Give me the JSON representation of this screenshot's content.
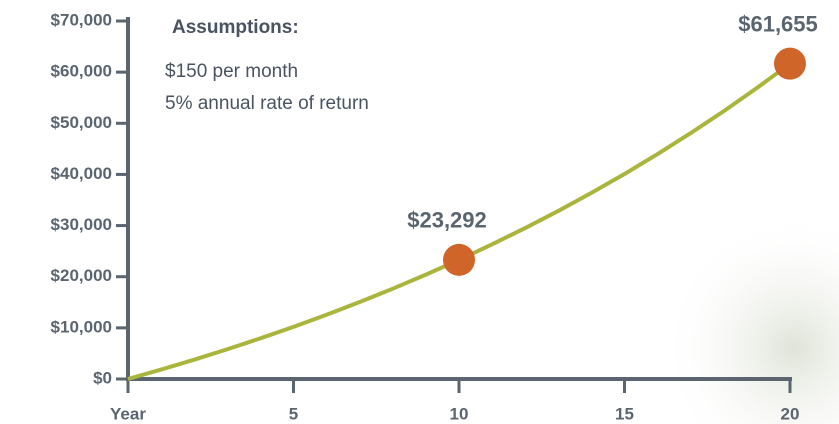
{
  "chart_data": {
    "type": "line",
    "annotations": [
      "Assumptions:",
      "$150 per month",
      "5% annual rate of return"
    ],
    "x": [
      0,
      1,
      2,
      3,
      4,
      5,
      6,
      7,
      8,
      9,
      10,
      11,
      12,
      13,
      14,
      15,
      16,
      17,
      18,
      19,
      20
    ],
    "series": [
      {
        "color": "#a9b53c",
        "values": [
          0,
          1842,
          3778,
          5813,
          7952,
          10201,
          12565,
          15049,
          17661,
          20407,
          23292,
          26326,
          29515,
          32866,
          36390,
          40093,
          43986,
          48079,
          52380,
          56902,
          61655
        ]
      }
    ],
    "markers": {
      "color": "#d0652a",
      "x": [
        10,
        20
      ],
      "values": [
        23292,
        61655
      ],
      "value_labels": [
        "$23,292",
        "$61,655"
      ]
    },
    "xlim": [
      0,
      20
    ],
    "xticks": [
      {
        "value": 0,
        "label": "Year"
      },
      5,
      10,
      15,
      20
    ],
    "ylim": [
      0,
      70000
    ],
    "yticks": [
      {
        "value": 0,
        "label": "$0"
      },
      {
        "value": 10000,
        "label": "$10,000"
      },
      {
        "value": 20000,
        "label": "$20,000"
      },
      {
        "value": 30000,
        "label": "$30,000"
      },
      {
        "value": 40000,
        "label": "$40,000"
      },
      {
        "value": 50000,
        "label": "$50,000"
      },
      {
        "value": 60000,
        "label": "$60,000"
      },
      {
        "value": 70000,
        "label": "$70,000"
      }
    ]
  }
}
